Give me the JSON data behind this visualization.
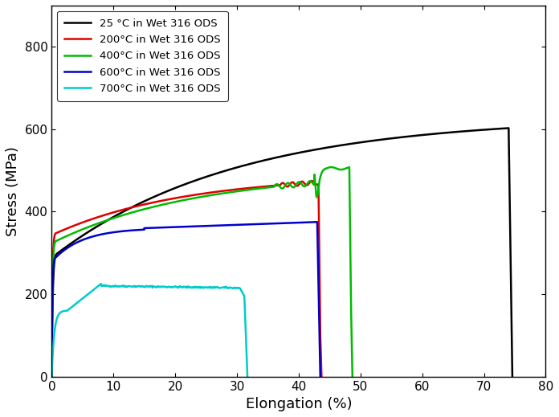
{
  "title": "",
  "xlabel": "Elongation (%)",
  "ylabel": "Stress (MPa)",
  "xlim": [
    0,
    80
  ],
  "ylim": [
    0,
    900
  ],
  "xticks": [
    0,
    10,
    20,
    30,
    40,
    50,
    60,
    70,
    80
  ],
  "yticks": [
    0,
    200,
    400,
    600,
    800
  ],
  "background_color": "#ffffff",
  "legend_labels": [
    "25 °C in Wet 316 ODS",
    "200°C in Wet 316 ODS",
    "400°C in Wet 316 ODS",
    "600°C in Wet 316 ODS",
    "700°C in Wet 316 ODS"
  ],
  "colors": [
    "#000000",
    "#dd0000",
    "#00bb00",
    "#0000cc",
    "#00cccc"
  ],
  "linewidth": 1.8
}
